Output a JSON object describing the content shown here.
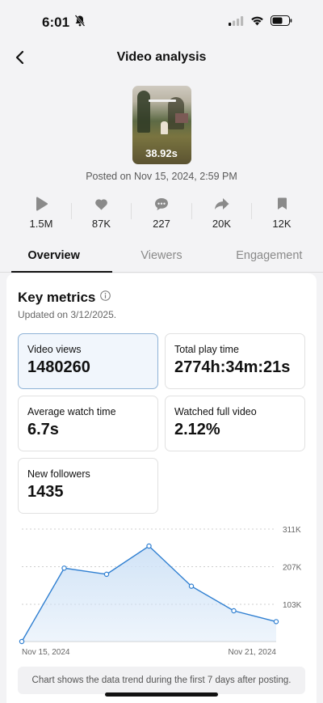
{
  "status_bar": {
    "time": "6:01"
  },
  "header": {
    "title": "Video analysis"
  },
  "video": {
    "duration": "38.92s",
    "posted": "Posted on Nov 15, 2024, 2:59 PM"
  },
  "stats": [
    {
      "icon": "play-icon",
      "value": "1.5M"
    },
    {
      "icon": "heart-icon",
      "value": "87K"
    },
    {
      "icon": "comment-icon",
      "value": "227"
    },
    {
      "icon": "share-icon",
      "value": "20K"
    },
    {
      "icon": "bookmark-icon",
      "value": "12K"
    }
  ],
  "tabs": [
    {
      "label": "Overview",
      "active": true
    },
    {
      "label": "Viewers",
      "active": false
    },
    {
      "label": "Engagement",
      "active": false
    }
  ],
  "key_metrics": {
    "title": "Key metrics",
    "updated": "Updated on 3/12/2025.",
    "items": [
      {
        "label": "Video views",
        "value": "1480260",
        "selected": true
      },
      {
        "label": "Total play time",
        "value": "2774h:34m:21s",
        "selected": false
      },
      {
        "label": "Average watch time",
        "value": "6.7s",
        "selected": false
      },
      {
        "label": "Watched full video",
        "value": "2.12%",
        "selected": false
      },
      {
        "label": "New followers",
        "value": "1435",
        "selected": false
      }
    ]
  },
  "chart_data": {
    "type": "area",
    "x": [
      "Nov 15, 2024",
      "Nov 16, 2024",
      "Nov 17, 2024",
      "Nov 18, 2024",
      "Nov 19, 2024",
      "Nov 20, 2024",
      "Nov 21, 2024"
    ],
    "values": [
      0,
      203000,
      186000,
      264000,
      153000,
      85000,
      55000
    ],
    "x_tick_labels": [
      "Nov 15, 2024",
      "Nov 21, 2024"
    ],
    "y_tick_labels": [
      "311K",
      "207K",
      "103K"
    ],
    "y_ticks": [
      311000,
      207000,
      103000
    ],
    "ylim": [
      0,
      311000
    ],
    "grid": true,
    "color": "#2f7fd1",
    "fill": "#cfe2f6"
  },
  "chart_note": "Chart shows the data trend during the first 7 days after posting."
}
